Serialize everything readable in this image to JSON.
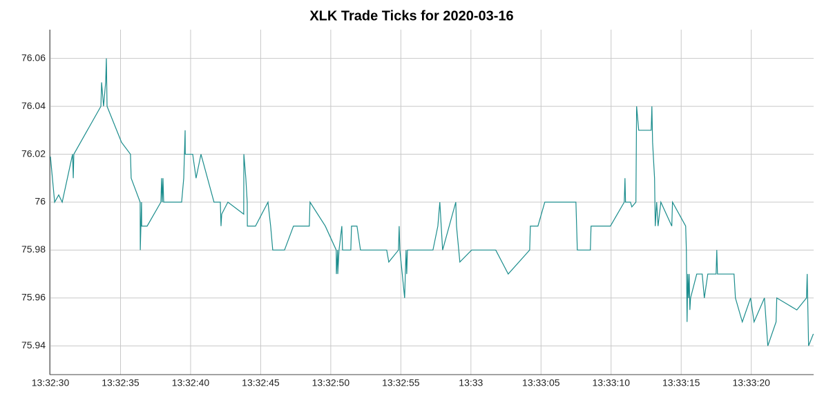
{
  "chart_data": {
    "type": "line",
    "title": "XLK Trade Ticks for 2020-03-16",
    "x": [
      "13:32:30.00",
      "13:32:30.30",
      "13:32:30.59",
      "13:32:30.84",
      "13:32:31.58",
      "13:32:31.63",
      "13:32:31.67",
      "13:32:33.60",
      "13:32:33.65",
      "13:32:33.79",
      "13:32:33.94",
      "13:32:33.99",
      "13:32:34.04",
      "13:32:35.07",
      "13:32:35.71",
      "13:32:35.76",
      "13:32:36.40",
      "13:32:36.41",
      "13:32:36.50",
      "13:32:36.51",
      "13:32:36.90",
      "13:32:37.88",
      "13:32:37.93",
      "13:32:37.98",
      "13:32:38.03",
      "13:32:38.08",
      "13:32:39.36",
      "13:32:39.51",
      "13:32:39.61",
      "13:32:39.62",
      "13:32:40.15",
      "13:32:40.39",
      "13:32:40.74",
      "13:32:41.67",
      "13:32:42.12",
      "13:32:42.17",
      "13:32:42.22",
      "13:32:42.66",
      "13:32:43.79",
      "13:32:43.80",
      "13:32:43.94",
      "13:32:44.04",
      "13:32:44.05",
      "13:32:44.63",
      "13:32:45.52",
      "13:32:45.71",
      "13:32:45.86",
      "13:32:46.70",
      "13:32:47.34",
      "13:32:48.47",
      "13:32:48.52",
      "13:32:49.61",
      "13:32:50.39",
      "13:32:50.40",
      "13:32:50.49",
      "13:32:50.50",
      "13:32:50.59",
      "13:32:50.79",
      "13:32:50.84",
      "13:32:51.43",
      "13:32:51.48",
      "13:32:51.87",
      "13:32:52.12",
      "13:32:53.99",
      "13:32:54.14",
      "13:32:54.83",
      "13:32:54.88",
      "13:32:54.93",
      "13:32:55.27",
      "13:32:55.37",
      "13:32:55.42",
      "13:32:55.47",
      "13:32:57.29",
      "13:32:57.64",
      "13:32:57.78",
      "13:32:57.98",
      "13:32:58.92",
      "13:32:58.97",
      "13:32:59.21",
      "13:33:00.05",
      "13:33:01.77",
      "13:33:02.66",
      "13:33:04.19",
      "13:33:04.24",
      "13:33:04.78",
      "13:33:05.27",
      "13:33:07.49",
      "13:33:07.59",
      "13:33:08.52",
      "13:33:08.57",
      "13:33:09.95",
      "13:33:10.94",
      "13:33:10.99",
      "13:33:11.03",
      "13:33:11.38",
      "13:33:11.48",
      "13:33:11.77",
      "13:33:11.82",
      "13:33:11.97",
      "13:33:12.86",
      "13:33:12.91",
      "13:33:12.96",
      "13:33:13.10",
      "13:33:13.15",
      "13:33:13.25",
      "13:33:13.35",
      "13:33:13.55",
      "13:33:14.33",
      "13:33:14.38",
      "13:33:15.32",
      "13:33:15.37",
      "13:33:15.42",
      "13:33:15.47",
      "13:33:15.52",
      "13:33:15.57",
      "13:33:15.62",
      "13:33:15.67",
      "13:33:16.11",
      "13:33:16.50",
      "13:33:16.65",
      "13:33:16.90",
      "13:33:17.49",
      "13:33:17.54",
      "13:33:17.59",
      "13:33:18.77",
      "13:33:18.87",
      "13:33:19.36",
      "13:33:19.95",
      "13:33:20.20",
      "13:33:20.94",
      "13:33:21.18",
      "13:33:21.77",
      "13:33:21.82",
      "13:33:23.25",
      "13:33:23.94",
      "13:33:23.99",
      "13:33:24.09",
      "13:33:24.43"
    ],
    "values": [
      76.019,
      76.0,
      76.003,
      76.0,
      76.02,
      76.01,
      76.02,
      76.04,
      76.05,
      76.04,
      76.05,
      76.06,
      76.04,
      76.025,
      76.02,
      76.01,
      76.0,
      75.98,
      76.0,
      75.99,
      75.99,
      76.0,
      76.01,
      76.0,
      76.01,
      76.0,
      76.0,
      76.01,
      76.03,
      76.02,
      76.02,
      76.01,
      76.02,
      76.0,
      76.0,
      75.99,
      75.995,
      76.0,
      75.995,
      76.02,
      76.01,
      76.0,
      75.99,
      75.99,
      76.0,
      75.99,
      75.98,
      75.98,
      75.99,
      75.99,
      76.0,
      75.99,
      75.98,
      75.97,
      75.98,
      75.97,
      75.98,
      75.99,
      75.98,
      75.98,
      75.99,
      75.99,
      75.98,
      75.98,
      75.975,
      75.98,
      75.99,
      75.98,
      75.96,
      75.98,
      75.97,
      75.98,
      75.98,
      75.99,
      76.0,
      75.98,
      76.0,
      75.99,
      75.975,
      75.98,
      75.98,
      75.97,
      75.98,
      75.99,
      75.99,
      76.0,
      76.0,
      75.98,
      75.98,
      75.99,
      75.99,
      76.0,
      76.01,
      76.0,
      76.0,
      75.998,
      76.0,
      76.04,
      76.03,
      76.03,
      76.04,
      76.025,
      76.01,
      75.99,
      76.0,
      75.99,
      76.0,
      75.99,
      76.0,
      75.99,
      75.98,
      75.95,
      75.97,
      75.96,
      75.97,
      75.955,
      75.96,
      75.97,
      75.97,
      75.96,
      75.97,
      75.97,
      75.98,
      75.97,
      75.97,
      75.96,
      75.95,
      75.96,
      75.95,
      75.96,
      75.94,
      75.95,
      75.96,
      75.955,
      75.96,
      75.97,
      75.94,
      75.945
    ],
    "color": "#1a8c8c",
    "xlim": [
      "13:32:29.95",
      "13:33:24.45"
    ],
    "xticks": [
      "13:32:30",
      "13:32:35",
      "13:32:40",
      "13:32:45",
      "13:32:50",
      "13:32:55",
      "13:33",
      "13:33:05",
      "13:33:10",
      "13:33:15",
      "13:33:20"
    ],
    "ylim": [
      75.928,
      76.072
    ],
    "yticks": [
      75.94,
      75.96,
      75.98,
      76,
      76.02,
      76.04,
      76.06
    ],
    "grid": true
  }
}
